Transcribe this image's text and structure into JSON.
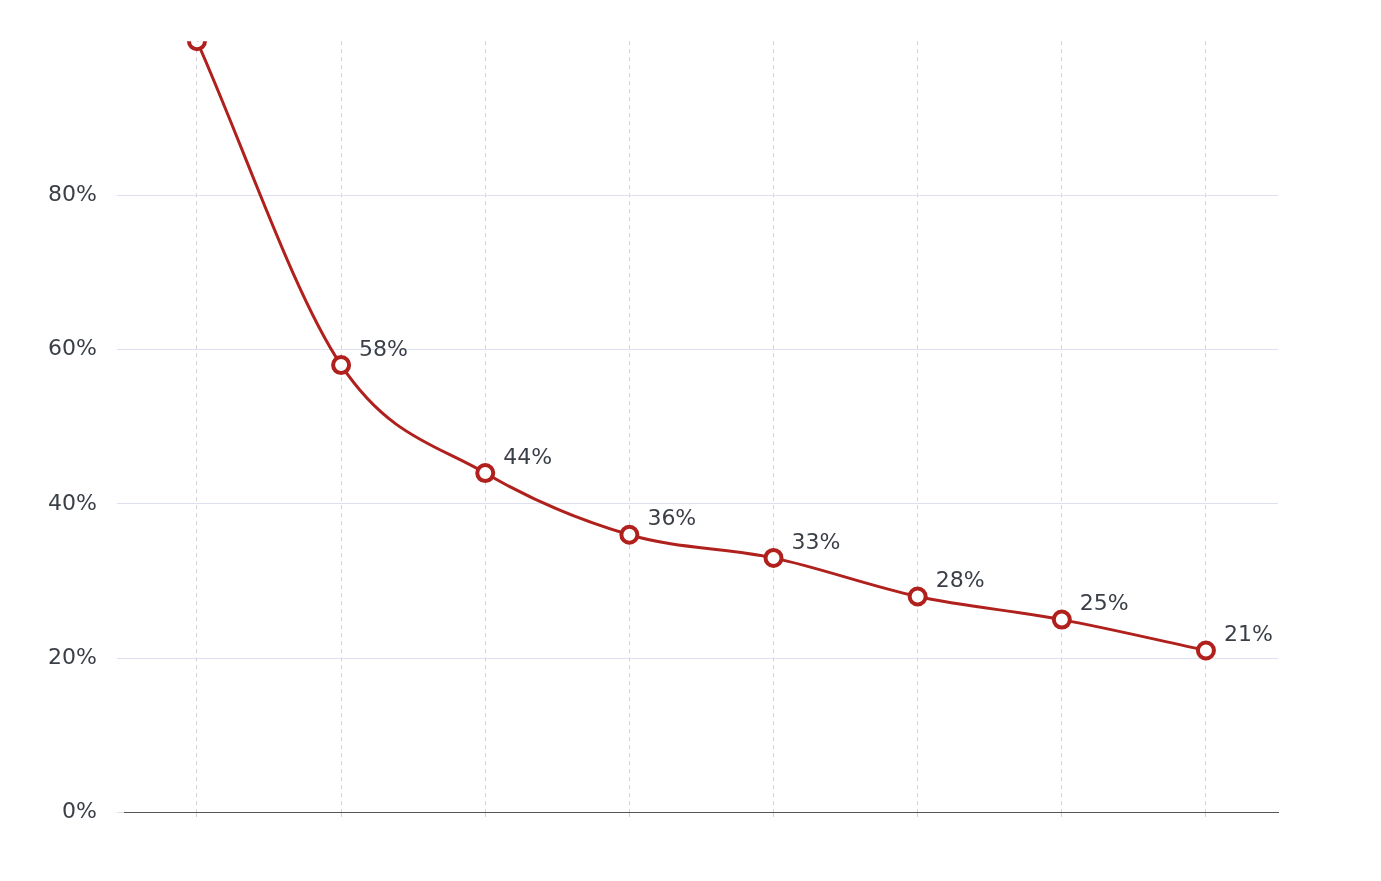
{
  "chart_data": {
    "type": "line",
    "categories": [
      null,
      null,
      null,
      null,
      null,
      null,
      null,
      null
    ],
    "series": [
      {
        "color": "#b0201c",
        "values": [
          100,
          58,
          44,
          36,
          33,
          28,
          25,
          21
        ],
        "value_labels": [
          null,
          "58%",
          "44%",
          "36%",
          "33%",
          "28%",
          "25%",
          "21%"
        ]
      }
    ],
    "ylim": [
      0,
      100
    ],
    "yticks": [
      {
        "value": 0,
        "label": "0%"
      },
      {
        "value": 20,
        "label": "20%"
      },
      {
        "value": 40,
        "label": "40%"
      },
      {
        "value": 60,
        "label": "60%"
      },
      {
        "value": 80,
        "label": "80%"
      }
    ],
    "grid": true,
    "legend": false,
    "marker": "circle",
    "line_style": "solid"
  }
}
